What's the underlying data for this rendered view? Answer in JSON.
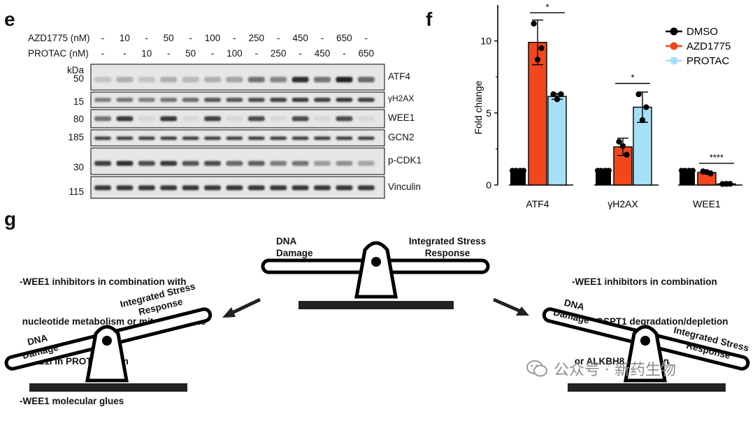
{
  "panel_labels": {
    "e": "e",
    "f": "f",
    "g": "g"
  },
  "blot": {
    "row_labels": [
      "AZD1775 (nM)",
      "PROTAC (nM)"
    ],
    "azd_values": [
      "-",
      "10",
      "-",
      "50",
      "-",
      "100",
      "-",
      "250",
      "-",
      "450",
      "-",
      "650",
      "-"
    ],
    "protac_values": [
      "-",
      "-",
      "10",
      "-",
      "50",
      "-",
      "100",
      "-",
      "250",
      "-",
      "450",
      "-",
      "650"
    ],
    "kda_label": "kDa",
    "mw_markers": [
      "50",
      "15",
      "80",
      "185",
      "30",
      "115"
    ],
    "bands": [
      "ATF4",
      "γH2AX",
      "WEE1",
      "GCN2",
      "p-CDK1",
      "Vinculin"
    ]
  },
  "chart_data": {
    "type": "bar",
    "categories": [
      "ATF4",
      "γH2AX",
      "WEE1"
    ],
    "series": [
      {
        "name": "DMSO",
        "color": "#000000",
        "values": [
          1.0,
          1.0,
          1.0
        ],
        "errors": [
          0.0,
          0.0,
          0.0
        ],
        "points": [
          [
            1.0,
            1.0,
            1.0
          ],
          [
            1.0,
            1.0,
            1.0
          ],
          [
            1.0,
            1.0,
            1.0
          ]
        ]
      },
      {
        "name": "AZD1775",
        "color": "#f2461c",
        "values": [
          9.9,
          2.65,
          0.87
        ],
        "errors": [
          1.55,
          0.6,
          0.1
        ],
        "points": [
          [
            11.2,
            9.5,
            8.7
          ],
          [
            3.0,
            2.1,
            2.7
          ],
          [
            0.95,
            0.8,
            0.9
          ]
        ]
      },
      {
        "name": "PROTAC",
        "color": "#a6e0f7",
        "values": [
          6.15,
          5.4,
          0.08
        ],
        "errors": [
          0.2,
          1.05,
          0.03
        ],
        "points": [
          [
            6.3,
            6.3,
            5.95
          ],
          [
            6.3,
            5.4,
            4.5
          ],
          [
            0.07,
            0.08,
            0.08
          ]
        ]
      }
    ],
    "ylabel": "Fold change",
    "ylim": [
      0,
      12.5
    ],
    "yticks": [
      "0",
      "5",
      "10"
    ],
    "significance": [
      "*",
      "*",
      "****"
    ],
    "legend_position": "top-right"
  },
  "diagram": {
    "top_left_label": "DNA\nDamage",
    "top_right_label": "Integrated Stress\nResponse",
    "left_text": [
      "-WEE1 inhibitors in combination with",
      " nucleotide metabolism or mitotic defects",
      "-WEE1i in PROTAC form",
      "-WEE1 molecular glues"
    ],
    "right_text": [
      "-WEE1 inhibitors in combination",
      " with GSPT1 degradation/depletion",
      " or ALKBH8 depletion"
    ],
    "left_scale_labels": {
      "low": "DNA\nDamage",
      "high": "Integrated Stress\nResponse"
    },
    "right_scale_labels": {
      "high": "DNA\nDamage",
      "low": "Integrated Stress\nResponse"
    }
  },
  "watermark": "公众号 · 新药生物"
}
